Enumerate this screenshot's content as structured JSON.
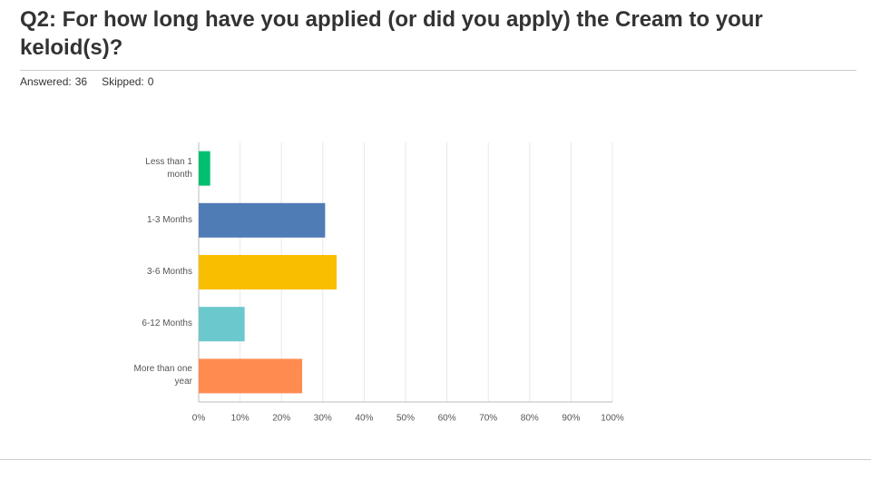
{
  "header": {
    "answered_label": "Answered:",
    "answered": 36,
    "skipped_label": "Skipped:",
    "skipped": 0
  },
  "chart_data": {
    "type": "bar",
    "orientation": "horizontal",
    "title": "Q2: For how long have you applied (or did you apply) the Cream to your keloid(s)?",
    "categories": [
      "Less than 1 month",
      "1-3 Months",
      "3-6 Months",
      "6-12 Months",
      "More than one year"
    ],
    "values": [
      2.78,
      30.56,
      33.33,
      11.11,
      25.0
    ],
    "colors": [
      "#00bf6f",
      "#507cb6",
      "#f9be00",
      "#6bc8cd",
      "#ff8b4f"
    ],
    "xlim": [
      0,
      100
    ],
    "xticks": [
      {
        "value": 0,
        "label": "0%"
      },
      {
        "value": 10,
        "label": "10%"
      },
      {
        "value": 20,
        "label": "20%"
      },
      {
        "value": 30,
        "label": "30%"
      },
      {
        "value": 40,
        "label": "40%"
      },
      {
        "value": 50,
        "label": "50%"
      },
      {
        "value": 60,
        "label": "60%"
      },
      {
        "value": 70,
        "label": "70%"
      },
      {
        "value": 80,
        "label": "80%"
      },
      {
        "value": 90,
        "label": "90%"
      },
      {
        "value": 100,
        "label": "100%"
      }
    ],
    "grid": true
  }
}
